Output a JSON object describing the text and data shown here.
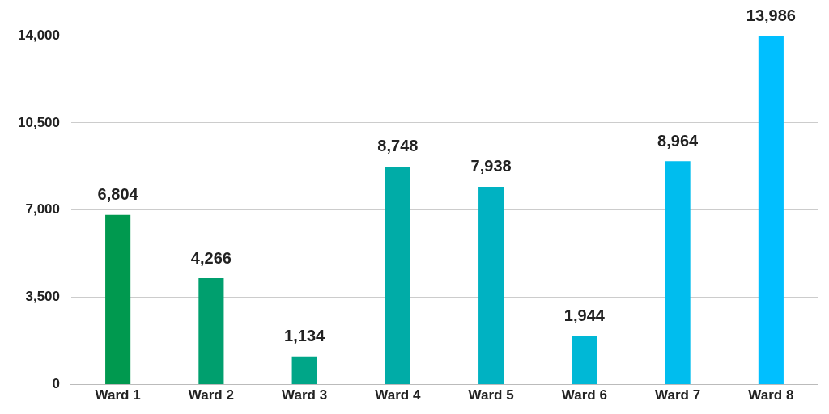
{
  "chart_data": {
    "type": "bar",
    "categories": [
      "Ward 1",
      "Ward 2",
      "Ward 3",
      "Ward 4",
      "Ward 5",
      "Ward 6",
      "Ward 7",
      "Ward 8"
    ],
    "values": [
      6804,
      4266,
      1134,
      8748,
      7938,
      1944,
      8964,
      13986
    ],
    "colors": [
      "#00994f",
      "#009f6e",
      "#00a688",
      "#00aca7",
      "#00b2c2",
      "#00b8d6",
      "#00bdee",
      "#00bfff"
    ],
    "value_labels": [
      "6,804",
      "4,266",
      "1,134",
      "8,748",
      "7,938",
      "1,944",
      "8,964",
      "13,986"
    ],
    "ylim": [
      0,
      14000
    ],
    "yticks": [
      {
        "value": 0,
        "label": "0"
      },
      {
        "value": 3500,
        "label": "3,500"
      },
      {
        "value": 7000,
        "label": "7,000"
      },
      {
        "value": 10500,
        "label": "10,500"
      },
      {
        "value": 14000,
        "label": "14,000"
      }
    ],
    "grid": "y",
    "legend": false
  }
}
